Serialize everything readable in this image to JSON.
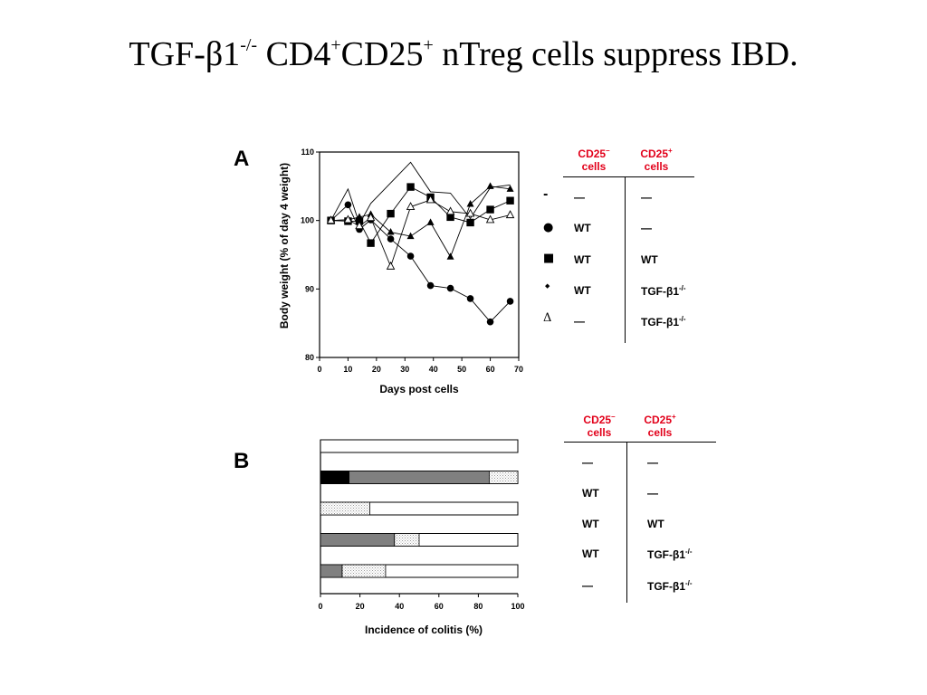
{
  "title": {
    "prefix": "TGF-β1",
    "sup1": "-/-",
    "mid1": " CD4",
    "sup2": "+",
    "mid2": "CD25",
    "sup3": "+",
    "suffix": " nTreg cells suppress IBD."
  },
  "panel_a": {
    "letter": "A",
    "table": {
      "col1_header": [
        "CD25",
        "cells"
      ],
      "col2_header": [
        "CD25",
        "cells"
      ],
      "col1_header_sup": "–",
      "col2_header_sup": "+",
      "rows": [
        {
          "symbol": "dash",
          "col1": "—",
          "col2": "—"
        },
        {
          "symbol": "circle",
          "col1": "WT",
          "col2": "—"
        },
        {
          "symbol": "square",
          "col1": "WT",
          "col2": "WT"
        },
        {
          "symbol": "triangle-filled",
          "col1": "WT",
          "col2": "TGF-β1",
          "col2_sup": "-/-"
        },
        {
          "symbol": "triangle-open",
          "col1": "—",
          "col2": "TGF-β1",
          "col2_sup": "-/-"
        }
      ]
    }
  },
  "panel_b": {
    "letter": "B",
    "table": {
      "col1_header": [
        "CD25",
        "cells"
      ],
      "col2_header": [
        "CD25",
        "cells"
      ],
      "col1_header_sup": "–",
      "col2_header_sup": "+",
      "rows": [
        {
          "col1": "—",
          "col2": "—"
        },
        {
          "col1": "WT",
          "col2": "—"
        },
        {
          "col1": "WT",
          "col2": "WT"
        },
        {
          "col1": "WT",
          "col2": "TGF-β1",
          "col2_sup": "-/-"
        },
        {
          "col1": "—",
          "col2": "TGF-β1",
          "col2_sup": "-/-"
        }
      ]
    }
  },
  "colors": {
    "header_red": "#e2001a",
    "severe": "#000000",
    "moderate": "#808080",
    "mild": "dotted-light-gray",
    "none": "#ffffff"
  },
  "chart_data": [
    {
      "type": "line",
      "panel": "A",
      "xlabel": "Days post cells",
      "ylabel": "Body weight (% of day 4 weight)",
      "xlim": [
        0,
        70
      ],
      "ylim": [
        80,
        110
      ],
      "xticks": [
        0,
        10,
        20,
        30,
        40,
        50,
        60,
        70
      ],
      "yticks": [
        80,
        90,
        100,
        110
      ],
      "grid": false,
      "series": [
        {
          "marker": "none",
          "x": [
            4,
            10,
            14,
            18,
            25,
            32,
            39,
            46,
            53,
            60,
            67
          ],
          "y": [
            100,
            104.6,
            99.5,
            102.5,
            105.5,
            108.5,
            104.2,
            104,
            100.3,
            104.8,
            105.2
          ]
        },
        {
          "marker": "circle",
          "x": [
            4,
            10,
            14,
            18,
            25,
            32,
            39,
            46,
            53,
            60,
            67
          ],
          "y": [
            100,
            102.3,
            98.7,
            100.1,
            97.3,
            94.8,
            90.5,
            90.1,
            88.6,
            85.2,
            88.2
          ]
        },
        {
          "marker": "square",
          "x": [
            4,
            10,
            14,
            18,
            25,
            32,
            39,
            46,
            53,
            60,
            67
          ],
          "y": [
            100,
            99.9,
            99.9,
            96.7,
            101,
            104.9,
            103.4,
            100.5,
            99.7,
            101.6,
            102.9
          ]
        },
        {
          "marker": "triangle-filled",
          "x": [
            4,
            10,
            14,
            18,
            25,
            32,
            39,
            46,
            53,
            60,
            67
          ],
          "y": [
            100,
            100.1,
            100.5,
            100.9,
            98.3,
            97.7,
            99.7,
            94.7,
            102.4,
            105,
            104.6
          ]
        },
        {
          "marker": "triangle-open",
          "x": [
            4,
            10,
            14,
            18,
            25,
            32,
            39,
            46,
            53,
            60,
            67
          ],
          "y": [
            100,
            100.1,
            99.2,
            100.4,
            93.3,
            102,
            103,
            101.3,
            101,
            100.1,
            100.8
          ]
        }
      ]
    },
    {
      "type": "bar",
      "panel": "B",
      "orientation": "horizontal",
      "stacked": true,
      "xlabel": "Incidence of colitis (%)",
      "xlim": [
        0,
        100
      ],
      "xticks": [
        0,
        20,
        40,
        60,
        80,
        100
      ],
      "grid": false,
      "rows": [
        {
          "severe": 0,
          "moderate": 0,
          "mild": 0
        },
        {
          "severe": 14.5,
          "moderate": 71,
          "mild": 14.5
        },
        {
          "severe": 0,
          "moderate": 0,
          "mild": 25
        },
        {
          "severe": 0,
          "moderate": 37.5,
          "mild": 12.5
        },
        {
          "severe": 0,
          "moderate": 11,
          "mild": 22
        }
      ]
    }
  ]
}
